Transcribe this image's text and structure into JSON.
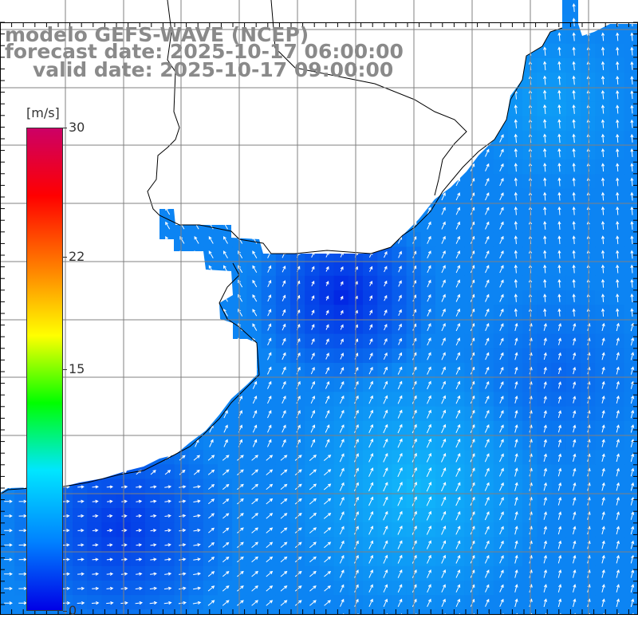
{
  "header": {
    "title_line1": "modelo GEFS-WAVE (NCEP)",
    "title_line2": "forecast date: 2025-10-17 06:00:00",
    "title_line3": "valid date: 2025-10-17 09:00:00"
  },
  "colorbar": {
    "unit": "[m/s]",
    "ticks": [
      "30",
      "22",
      "15",
      "0"
    ],
    "tick_values": [
      30,
      22,
      15,
      0
    ],
    "range": [
      0,
      30
    ],
    "colors": [
      "#0000e6",
      "#0080ff",
      "#00e6ff",
      "#00ff00",
      "#ffff00",
      "#ff8000",
      "#ff0000",
      "#cc0066"
    ]
  },
  "map": {
    "variable": "wind speed and direction",
    "land_color": "#ffffff",
    "coast_color": "#000000",
    "grid_color": "#808080",
    "arrow_color": "#ffffff"
  }
}
